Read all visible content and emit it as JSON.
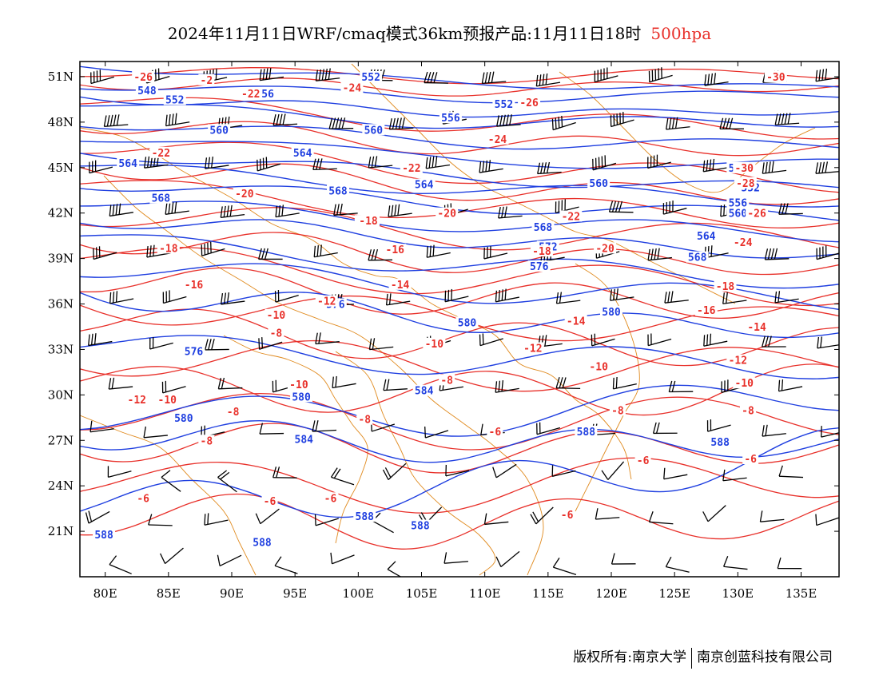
{
  "title": {
    "main": "2024年11月11日WRF/cmaq模式36km预报产品:11月11日18时",
    "level": "500hpa"
  },
  "footer": {
    "left": "版权所有:南京大学",
    "right": "南京创蓝科技有限公司"
  },
  "colors": {
    "height_contour": "#1f3fe0",
    "temperature_contour": "#e8302a",
    "boundary": "#e08a1e",
    "barb": "#000000",
    "frame": "#000000"
  },
  "map": {
    "lon_range": [
      78,
      138
    ],
    "lat_range": [
      18,
      52
    ],
    "x_ticks": [
      {
        "lon": 80,
        "label": "80E"
      },
      {
        "lon": 85,
        "label": "85E"
      },
      {
        "lon": 90,
        "label": "90E"
      },
      {
        "lon": 95,
        "label": "95E"
      },
      {
        "lon": 100,
        "label": "100E"
      },
      {
        "lon": 105,
        "label": "105E"
      },
      {
        "lon": 110,
        "label": "110E"
      },
      {
        "lon": 115,
        "label": "115E"
      },
      {
        "lon": 120,
        "label": "120E"
      },
      {
        "lon": 125,
        "label": "125E"
      },
      {
        "lon": 130,
        "label": "130E"
      },
      {
        "lon": 135,
        "label": "135E"
      }
    ],
    "y_ticks": [
      {
        "lat": 51,
        "label": "51N"
      },
      {
        "lat": 48,
        "label": "48N"
      },
      {
        "lat": 45,
        "label": "45N"
      },
      {
        "lat": 42,
        "label": "42N"
      },
      {
        "lat": 39,
        "label": "39N"
      },
      {
        "lat": 36,
        "label": "36N"
      },
      {
        "lat": 33,
        "label": "33N"
      },
      {
        "lat": 30,
        "label": "30N"
      },
      {
        "lat": 27,
        "label": "27N"
      },
      {
        "lat": 24,
        "label": "24N"
      },
      {
        "lat": 21,
        "label": "21N"
      }
    ],
    "height_labels": [
      {
        "lon": 83.3,
        "lat": 50.1,
        "text": "548"
      },
      {
        "lon": 85.5,
        "lat": 49.5,
        "text": "552"
      },
      {
        "lon": 101.0,
        "lat": 51.0,
        "text": "552"
      },
      {
        "lon": 92.6,
        "lat": 49.9,
        "text": "556"
      },
      {
        "lon": 89.0,
        "lat": 47.5,
        "text": "560"
      },
      {
        "lon": 101.2,
        "lat": 47.5,
        "text": "560"
      },
      {
        "lon": 111.5,
        "lat": 49.2,
        "text": "552"
      },
      {
        "lon": 107.3,
        "lat": 48.3,
        "text": "556"
      },
      {
        "lon": 81.8,
        "lat": 45.3,
        "text": "564"
      },
      {
        "lon": 95.6,
        "lat": 46.0,
        "text": "564"
      },
      {
        "lon": 84.4,
        "lat": 43.0,
        "text": "568"
      },
      {
        "lon": 98.4,
        "lat": 43.5,
        "text": "568"
      },
      {
        "lon": 105.2,
        "lat": 43.9,
        "text": "564"
      },
      {
        "lon": 119.0,
        "lat": 44.0,
        "text": "560"
      },
      {
        "lon": 100.6,
        "lat": 41.5,
        "text": "572"
      },
      {
        "lon": 114.6,
        "lat": 41.1,
        "text": "568"
      },
      {
        "lon": 115.0,
        "lat": 39.8,
        "text": "572"
      },
      {
        "lon": 114.3,
        "lat": 38.5,
        "text": "576"
      },
      {
        "lon": 130.0,
        "lat": 45.0,
        "text": "548"
      },
      {
        "lon": 131.0,
        "lat": 43.7,
        "text": "552"
      },
      {
        "lon": 130.0,
        "lat": 42.7,
        "text": "556"
      },
      {
        "lon": 130.0,
        "lat": 42.0,
        "text": "560"
      },
      {
        "lon": 127.5,
        "lat": 40.5,
        "text": "564"
      },
      {
        "lon": 126.8,
        "lat": 39.1,
        "text": "568"
      },
      {
        "lon": 98.2,
        "lat": 36.0,
        "text": "576"
      },
      {
        "lon": 120.0,
        "lat": 35.5,
        "text": "580"
      },
      {
        "lon": 108.6,
        "lat": 34.8,
        "text": "580"
      },
      {
        "lon": 87.0,
        "lat": 32.9,
        "text": "576"
      },
      {
        "lon": 105.2,
        "lat": 30.3,
        "text": "584"
      },
      {
        "lon": 95.5,
        "lat": 29.9,
        "text": "580"
      },
      {
        "lon": 86.2,
        "lat": 28.5,
        "text": "580"
      },
      {
        "lon": 95.7,
        "lat": 27.1,
        "text": "584"
      },
      {
        "lon": 118.0,
        "lat": 27.6,
        "text": "588"
      },
      {
        "lon": 128.6,
        "lat": 26.9,
        "text": "588"
      },
      {
        "lon": 100.5,
        "lat": 22.0,
        "text": "588"
      },
      {
        "lon": 104.9,
        "lat": 21.4,
        "text": "588"
      },
      {
        "lon": 79.9,
        "lat": 20.8,
        "text": "588"
      },
      {
        "lon": 92.4,
        "lat": 20.3,
        "text": "588"
      }
    ],
    "temp_labels": [
      {
        "lon": 83.0,
        "lat": 51.0,
        "text": "-26"
      },
      {
        "lon": 88.0,
        "lat": 50.8,
        "text": "-2"
      },
      {
        "lon": 91.5,
        "lat": 49.9,
        "text": "-22"
      },
      {
        "lon": 99.5,
        "lat": 50.3,
        "text": "-24"
      },
      {
        "lon": 113.5,
        "lat": 49.3,
        "text": "-26"
      },
      {
        "lon": 133.0,
        "lat": 51.0,
        "text": "-30"
      },
      {
        "lon": 84.4,
        "lat": 46.0,
        "text": "-22"
      },
      {
        "lon": 111.0,
        "lat": 46.9,
        "text": "-24"
      },
      {
        "lon": 104.2,
        "lat": 45.0,
        "text": "-22"
      },
      {
        "lon": 91.0,
        "lat": 43.3,
        "text": "-20"
      },
      {
        "lon": 130.5,
        "lat": 45.0,
        "text": "-30"
      },
      {
        "lon": 130.6,
        "lat": 44.0,
        "text": "-28"
      },
      {
        "lon": 131.5,
        "lat": 42.0,
        "text": "-26"
      },
      {
        "lon": 107.0,
        "lat": 42.0,
        "text": "-20"
      },
      {
        "lon": 116.8,
        "lat": 41.8,
        "text": "-22"
      },
      {
        "lon": 130.4,
        "lat": 40.1,
        "text": "-24"
      },
      {
        "lon": 85.0,
        "lat": 39.7,
        "text": "-18"
      },
      {
        "lon": 100.8,
        "lat": 41.5,
        "text": "-18"
      },
      {
        "lon": 102.9,
        "lat": 39.6,
        "text": "-16"
      },
      {
        "lon": 119.5,
        "lat": 39.7,
        "text": "-20"
      },
      {
        "lon": 114.5,
        "lat": 39.5,
        "text": "-18"
      },
      {
        "lon": 87.0,
        "lat": 37.3,
        "text": "-16"
      },
      {
        "lon": 103.3,
        "lat": 37.3,
        "text": "-14"
      },
      {
        "lon": 129.0,
        "lat": 37.2,
        "text": "-18"
      },
      {
        "lon": 97.5,
        "lat": 36.2,
        "text": "-12"
      },
      {
        "lon": 127.5,
        "lat": 35.6,
        "text": "-16"
      },
      {
        "lon": 93.5,
        "lat": 35.3,
        "text": "-10"
      },
      {
        "lon": 117.2,
        "lat": 34.9,
        "text": "-14"
      },
      {
        "lon": 131.5,
        "lat": 34.5,
        "text": "-14"
      },
      {
        "lon": 93.5,
        "lat": 34.1,
        "text": "-8"
      },
      {
        "lon": 106.0,
        "lat": 33.4,
        "text": "-10"
      },
      {
        "lon": 113.8,
        "lat": 33.1,
        "text": "-12"
      },
      {
        "lon": 130.0,
        "lat": 32.3,
        "text": "-12"
      },
      {
        "lon": 119.0,
        "lat": 31.9,
        "text": "-10"
      },
      {
        "lon": 107.0,
        "lat": 31.0,
        "text": "-8"
      },
      {
        "lon": 130.5,
        "lat": 30.8,
        "text": "-10"
      },
      {
        "lon": 95.3,
        "lat": 30.7,
        "text": "-10"
      },
      {
        "lon": 82.5,
        "lat": 29.7,
        "text": "-12"
      },
      {
        "lon": 84.9,
        "lat": 29.7,
        "text": "-10"
      },
      {
        "lon": 90.1,
        "lat": 28.9,
        "text": "-8"
      },
      {
        "lon": 120.5,
        "lat": 29.0,
        "text": "-8"
      },
      {
        "lon": 130.8,
        "lat": 29.0,
        "text": "-8"
      },
      {
        "lon": 100.5,
        "lat": 28.4,
        "text": "-8"
      },
      {
        "lon": 88.0,
        "lat": 27.0,
        "text": "-8"
      },
      {
        "lon": 110.8,
        "lat": 27.6,
        "text": "-6"
      },
      {
        "lon": 122.5,
        "lat": 25.7,
        "text": "-6"
      },
      {
        "lon": 131.0,
        "lat": 25.8,
        "text": "-6"
      },
      {
        "lon": 83.0,
        "lat": 23.2,
        "text": "-6"
      },
      {
        "lon": 93.0,
        "lat": 23.0,
        "text": "-6"
      },
      {
        "lon": 97.8,
        "lat": 23.2,
        "text": "-6"
      },
      {
        "lon": 116.5,
        "lat": 22.1,
        "text": "-6"
      }
    ]
  }
}
